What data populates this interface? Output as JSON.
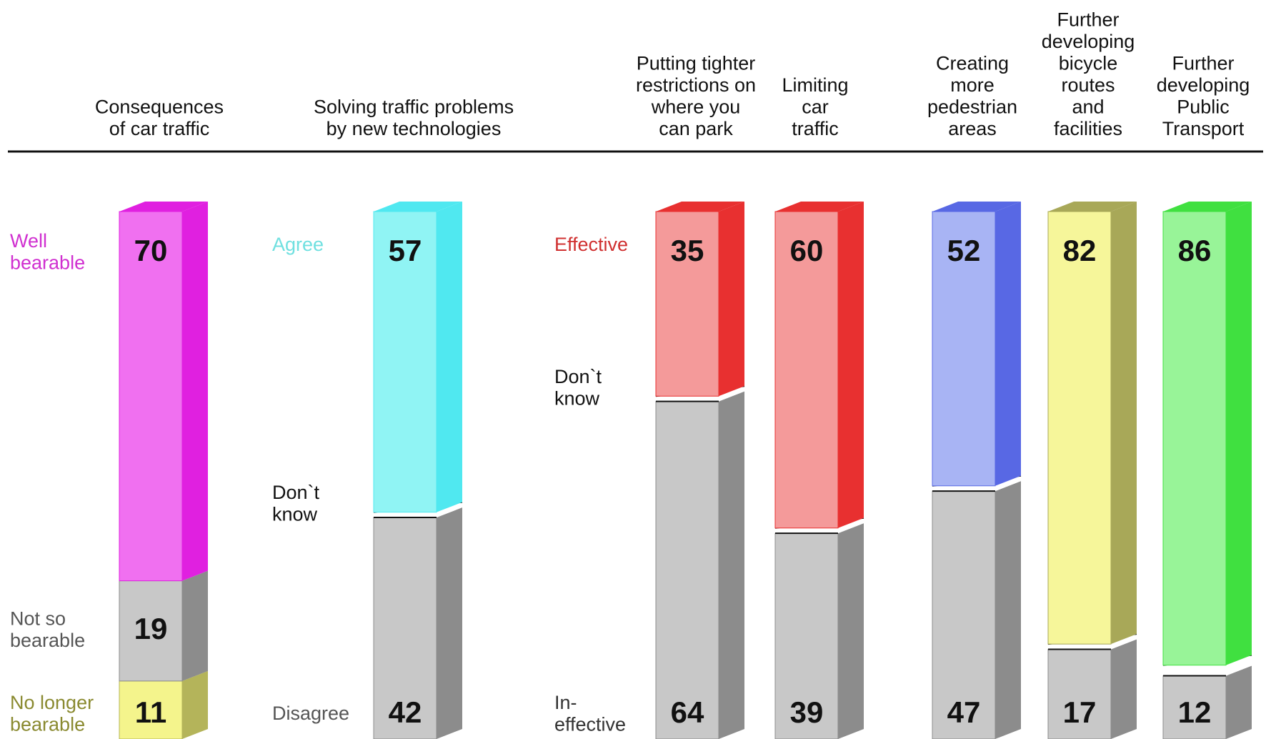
{
  "chart_data": {
    "type": "stacked-3d-bar",
    "ylim": [
      0,
      100
    ],
    "bars": [
      {
        "category": [
          "Consequences",
          "of car traffic"
        ],
        "segments": [
          {
            "label": [
              "No longer",
              "bearable"
            ],
            "label_color": "#8a8a30",
            "value": 11,
            "color": "#f4f48c",
            "side_color": "#b4b45a"
          },
          {
            "label": [
              "Not so",
              "bearable"
            ],
            "label_color": "#555555",
            "value": 19,
            "color": "#c8c8c8",
            "side_color": "#8c8c8c"
          },
          {
            "label": [
              "Well",
              "bearable"
            ],
            "label_color": "#d030d0",
            "value": 70,
            "color": "#f070f0",
            "side_color": "#e020e0"
          }
        ]
      },
      {
        "category": [
          "Solving traffic problems",
          "by new technologies"
        ],
        "segments": [
          {
            "label": [
              "Disagree"
            ],
            "label_color": "#555555",
            "value": 42,
            "color": "#c8c8c8",
            "side_color": "#8c8c8c"
          },
          {
            "label": [
              "Don`t",
              "know"
            ],
            "label_color": "#111111",
            "value": 1,
            "color": "#ffffff",
            "side_color": "#ffffff"
          },
          {
            "label": [
              "Agree"
            ],
            "label_color": "#70e0e0",
            "value": 57,
            "color": "#90f4f4",
            "side_color": "#50e8f0"
          }
        ]
      },
      {
        "category": [
          "Putting tighter",
          "restrictions on",
          "where you",
          "can park"
        ],
        "segments": [
          {
            "label": [
              "In-",
              "effective"
            ],
            "label_color": "#333333",
            "value": 64,
            "color": "#c8c8c8",
            "side_color": "#8c8c8c"
          },
          {
            "label": [
              "Don`t",
              "know"
            ],
            "label_color": "#111111",
            "value": 1,
            "color": "#ffffff",
            "side_color": "#ffffff"
          },
          {
            "label": [
              "Effective"
            ],
            "label_color": "#d03030",
            "value": 35,
            "color": "#f49a9a",
            "side_color": "#e83030"
          }
        ]
      },
      {
        "category": [
          "Limiting",
          "car",
          "traffic"
        ],
        "segments": [
          {
            "value": 39,
            "color": "#c8c8c8",
            "side_color": "#8c8c8c"
          },
          {
            "value": 1,
            "color": "#ffffff",
            "side_color": "#ffffff"
          },
          {
            "value": 60,
            "color": "#f49a9a",
            "side_color": "#e83030"
          }
        ]
      },
      {
        "category": [
          "Creating",
          "more",
          "pedestrian",
          "areas"
        ],
        "segments": [
          {
            "value": 47,
            "color": "#c8c8c8",
            "side_color": "#8c8c8c"
          },
          {
            "value": 1,
            "color": "#ffffff",
            "side_color": "#ffffff"
          },
          {
            "value": 52,
            "color": "#a8b4f4",
            "side_color": "#5868e4"
          }
        ]
      },
      {
        "category": [
          "Further",
          "developing",
          "bicycle",
          "routes",
          "and",
          "facilities"
        ],
        "segments": [
          {
            "value": 17,
            "color": "#c8c8c8",
            "side_color": "#8c8c8c"
          },
          {
            "value": 1,
            "color": "#ffffff",
            "side_color": "#ffffff"
          },
          {
            "value": 82,
            "color": "#f6f69a",
            "side_color": "#a8a858"
          }
        ]
      },
      {
        "category": [
          "Further",
          "developing",
          "Public",
          "Transport"
        ],
        "segments": [
          {
            "value": 12,
            "color": "#c8c8c8",
            "side_color": "#8c8c8c"
          },
          {
            "value": 2,
            "color": "#ffffff",
            "side_color": "#ffffff"
          },
          {
            "value": 86,
            "color": "#98f498",
            "side_color": "#40e040"
          }
        ]
      }
    ]
  }
}
